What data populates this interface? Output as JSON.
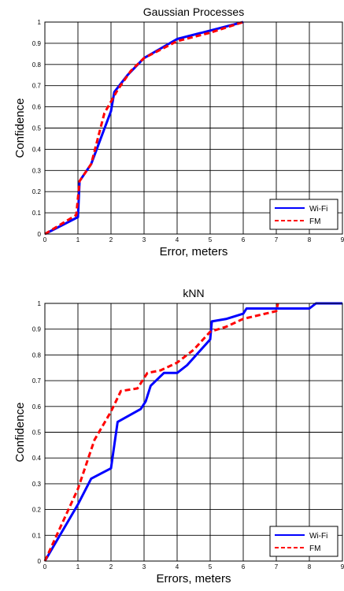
{
  "chart_data": [
    {
      "type": "line",
      "title": "Gaussian Processes",
      "xlabel": "Error, meters",
      "ylabel": "Confidence",
      "xlim": [
        0,
        9
      ],
      "ylim": [
        0,
        1
      ],
      "xticks": [
        "0",
        "1",
        "2",
        "3",
        "4",
        "5",
        "6",
        "7",
        "8",
        "9"
      ],
      "yticks": [
        "0",
        "0.1",
        "0.2",
        "0.3",
        "0.4",
        "0.5",
        "0.6",
        "0.7",
        "0.8",
        "0.9",
        "1"
      ],
      "grid": true,
      "legend_position": "bottom-right",
      "series": [
        {
          "name": "Wi-Fi",
          "color": "#0000ff",
          "style": "solid",
          "x": [
            0,
            1.0,
            1.05,
            1.4,
            2.0,
            2.1,
            2.5,
            3.0,
            4.0,
            5.0,
            6.0
          ],
          "y": [
            0,
            0.08,
            0.25,
            0.33,
            0.58,
            0.67,
            0.75,
            0.83,
            0.92,
            0.96,
            1.0
          ]
        },
        {
          "name": "FM",
          "color": "#ff0000",
          "style": "dashed",
          "x": [
            0,
            0.95,
            1.05,
            1.4,
            1.8,
            2.2,
            2.6,
            3.0,
            3.5,
            4.0,
            5.0,
            6.0
          ],
          "y": [
            0,
            0.09,
            0.25,
            0.33,
            0.57,
            0.68,
            0.77,
            0.83,
            0.87,
            0.91,
            0.95,
            1.0
          ]
        }
      ]
    },
    {
      "type": "line",
      "title": "kNN",
      "xlabel": "Errors, meters",
      "ylabel": "Confidence",
      "xlim": [
        0,
        9
      ],
      "ylim": [
        0,
        1
      ],
      "xticks": [
        "0",
        "1",
        "2",
        "3",
        "4",
        "5",
        "6",
        "7",
        "8",
        "9"
      ],
      "yticks": [
        "0",
        "0.1",
        "0.2",
        "0.3",
        "0.4",
        "0.5",
        "0.6",
        "0.7",
        "0.8",
        "0.9",
        "1"
      ],
      "grid": true,
      "legend_position": "bottom-right",
      "series": [
        {
          "name": "Wi-Fi",
          "color": "#0000ff",
          "style": "solid",
          "x": [
            0,
            1.0,
            1.4,
            2.0,
            2.2,
            2.9,
            3.05,
            3.2,
            3.6,
            4.0,
            4.3,
            5.0,
            5.05,
            5.5,
            6.0,
            6.1,
            7.0,
            8.0,
            8.2,
            9.0
          ],
          "y": [
            0,
            0.22,
            0.32,
            0.36,
            0.54,
            0.59,
            0.62,
            0.68,
            0.73,
            0.73,
            0.76,
            0.86,
            0.93,
            0.94,
            0.96,
            0.98,
            0.98,
            0.98,
            1.0,
            1.0
          ]
        },
        {
          "name": "FM",
          "color": "#ff0000",
          "style": "dashed",
          "x": [
            0,
            1.0,
            1.5,
            2.0,
            2.3,
            2.8,
            3.1,
            3.5,
            4.0,
            4.5,
            5.0,
            5.5,
            6.0,
            7.0,
            7.05
          ],
          "y": [
            0,
            0.28,
            0.47,
            0.58,
            0.66,
            0.67,
            0.73,
            0.74,
            0.77,
            0.82,
            0.89,
            0.91,
            0.94,
            0.97,
            1.0
          ]
        }
      ]
    }
  ]
}
